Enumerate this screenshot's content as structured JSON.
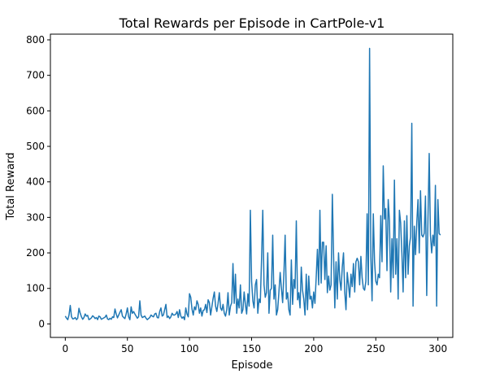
{
  "chart_data": {
    "type": "line",
    "title": "Total Rewards per Episode in CartPole-v1",
    "xlabel": "Episode",
    "ylabel": "Total Reward",
    "xlim": [
      -12,
      312
    ],
    "ylim": [
      -38,
      816
    ],
    "x_ticks": [
      0,
      50,
      100,
      150,
      200,
      250,
      300
    ],
    "y_ticks": [
      0,
      100,
      200,
      300,
      400,
      500,
      600,
      700,
      800
    ],
    "grid": false,
    "legend": "none",
    "line_color": "#1f77b4",
    "series": [
      {
        "values": [
          22,
          16,
          12,
          25,
          52,
          20,
          14,
          15,
          18,
          12,
          16,
          44,
          30,
          20,
          13,
          18,
          28,
          22,
          24,
          12,
          14,
          17,
          23,
          20,
          15,
          18,
          12,
          22,
          20,
          13,
          15,
          17,
          19,
          25,
          14,
          12,
          16,
          13,
          20,
          18,
          42,
          28,
          17,
          25,
          33,
          40,
          22,
          18,
          15,
          28,
          45,
          20,
          12,
          48,
          30,
          35,
          28,
          22,
          16,
          20,
          65,
          25,
          18,
          20,
          22,
          16,
          12,
          15,
          18,
          25,
          22,
          20,
          28,
          30,
          18,
          17,
          35,
          45,
          22,
          25,
          40,
          55,
          18,
          22,
          15,
          20,
          30,
          25,
          25,
          28,
          35,
          18,
          40,
          22,
          16,
          20,
          12,
          45,
          28,
          20,
          85,
          75,
          42,
          25,
          48,
          40,
          65,
          55,
          30,
          45,
          22,
          38,
          40,
          55,
          32,
          68,
          60,
          25,
          48,
          72,
          90,
          50,
          35,
          58,
          88,
          45,
          38,
          55,
          30,
          22,
          40,
          88,
          25,
          50,
          60,
          170,
          58,
          140,
          30,
          70,
          45,
          110,
          30,
          40,
          90,
          55,
          28,
          85,
          50,
          320,
          120,
          65,
          45,
          110,
          125,
          30,
          70,
          60,
          180,
          320,
          110,
          75,
          88,
          200,
          30,
          95,
          100,
          250,
          70,
          110,
          25,
          40,
          90,
          145,
          100,
          60,
          140,
          250,
          70,
          88,
          40,
          25,
          180,
          55,
          125,
          100,
          290,
          68,
          88,
          45,
          160,
          95,
          70,
          25,
          140,
          40,
          135,
          70,
          78,
          45,
          90,
          58,
          130,
          210,
          110,
          320,
          115,
          230,
          230,
          125,
          220,
          88,
          135,
          95,
          110,
          365,
          195,
          45,
          175,
          70,
          200,
          125,
          95,
          160,
          200,
          90,
          40,
          145,
          110,
          75,
          140,
          105,
          170,
          90,
          175,
          185,
          175,
          110,
          190,
          130,
          100,
          95,
          120,
          310,
          110,
          776,
          190,
          65,
          310,
          175,
          120,
          110,
          140,
          130,
          305,
          175,
          445,
          295,
          325,
          150,
          350,
          290,
          90,
          240,
          130,
          405,
          140,
          240,
          70,
          320,
          285,
          200,
          90,
          290,
          130,
          305,
          140,
          220,
          245,
          565,
          50,
          275,
          195,
          285,
          350,
          200,
          375,
          250,
          245,
          255,
          360,
          80,
          295,
          480,
          250,
          200,
          250,
          220,
          390,
          50,
          350,
          255,
          250
        ]
      }
    ]
  }
}
